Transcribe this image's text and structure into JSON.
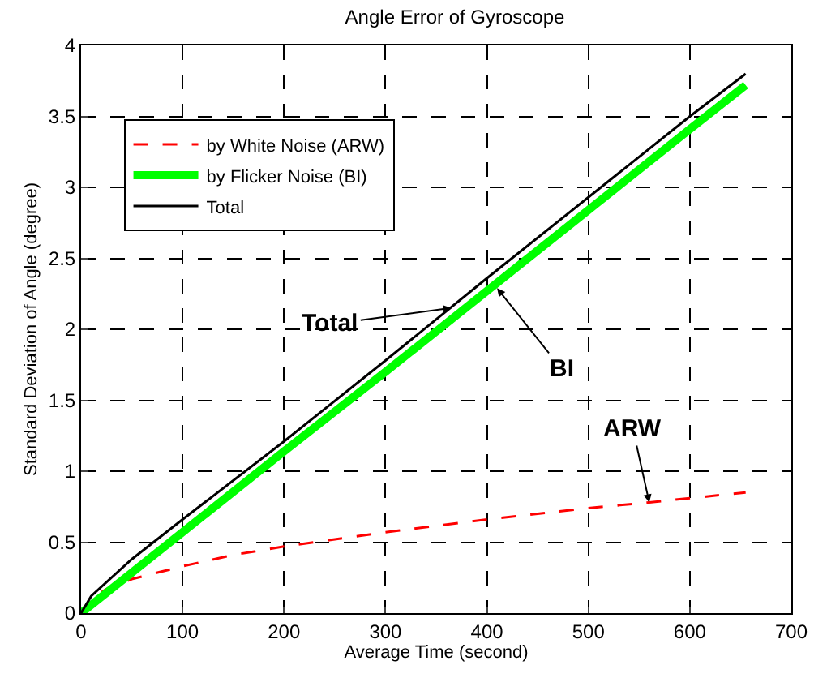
{
  "chart_data": {
    "type": "line",
    "title": "Angle Error of Gyroscope",
    "xlabel": "Average Time (second)",
    "ylabel": "Standard Deviation of Angle (degree)",
    "xlim": [
      0,
      700
    ],
    "xticks": [
      0,
      100,
      200,
      300,
      400,
      500,
      600,
      700
    ],
    "ylim": [
      0,
      4
    ],
    "yticks": [
      0,
      0.5,
      1,
      1.5,
      2,
      2.5,
      3,
      3.5,
      4
    ],
    "grid": true,
    "legend": "top left",
    "marker": "none",
    "series": [
      {
        "name": "by White Noise (ARW)",
        "color": "#ff0000",
        "line_style": "dashed",
        "x": [
          0,
          10,
          25,
          50,
          100,
          150,
          200,
          300,
          400,
          500,
          560,
          600,
          655
        ],
        "values": [
          0,
          0.1,
          0.17,
          0.24,
          0.33,
          0.41,
          0.47,
          0.57,
          0.66,
          0.74,
          0.78,
          0.81,
          0.85
        ]
      },
      {
        "name": "by Flicker Noise (BI)",
        "color": "#00ff00",
        "line_style": "solid",
        "x": [
          0,
          100,
          200,
          300,
          400,
          500,
          600,
          655
        ],
        "values": [
          0,
          0.57,
          1.14,
          1.7,
          2.27,
          2.84,
          3.41,
          3.72
        ]
      },
      {
        "name": "Total",
        "color": "#000000",
        "line_style": "solid",
        "x": [
          0,
          10,
          50,
          100,
          200,
          300,
          400,
          500,
          600,
          655
        ],
        "values": [
          0,
          0.12,
          0.38,
          0.66,
          1.21,
          1.78,
          2.36,
          2.93,
          3.5,
          3.8
        ]
      }
    ],
    "annotations": [
      {
        "text": "Total",
        "x": 365,
        "y": 2.15
      },
      {
        "text": "BI",
        "x": 410,
        "y": 2.29
      },
      {
        "text": "ARW",
        "x": 560,
        "y": 0.78
      }
    ]
  }
}
